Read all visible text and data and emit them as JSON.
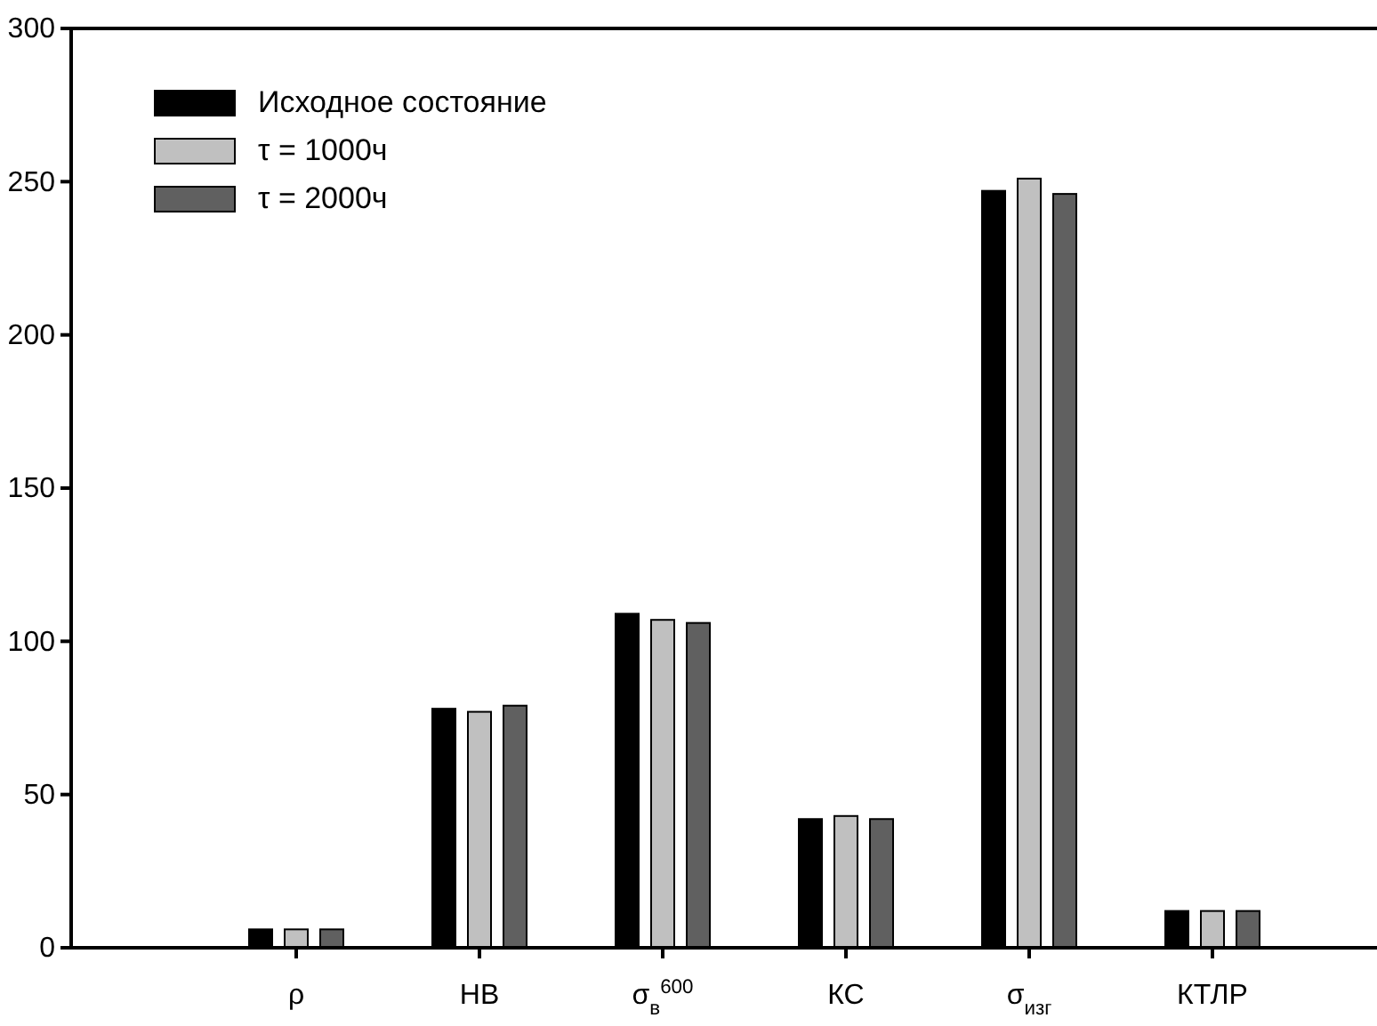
{
  "chart_data": {
    "type": "bar",
    "categories": [
      "ρ",
      "НВ",
      "σ$_{в}$$^{600}$",
      "КС",
      "σ$_{изг}$",
      "КТЛР"
    ],
    "series": [
      {
        "name": "Исходное состояние",
        "color": "#000000",
        "values": [
          6,
          78,
          109,
          42,
          247,
          12
        ]
      },
      {
        "name": "τ = 1000ч",
        "color": "#c0c0c0",
        "values": [
          6,
          77,
          107,
          43,
          251,
          12
        ]
      },
      {
        "name": "τ = 2000ч",
        "color": "#606060",
        "values": [
          6,
          79,
          106,
          42,
          246,
          12
        ]
      }
    ],
    "ylim": [
      0,
      300
    ],
    "yticks": [
      0,
      50,
      100,
      150,
      200,
      250,
      300
    ],
    "grid": false,
    "legend": "top left"
  }
}
